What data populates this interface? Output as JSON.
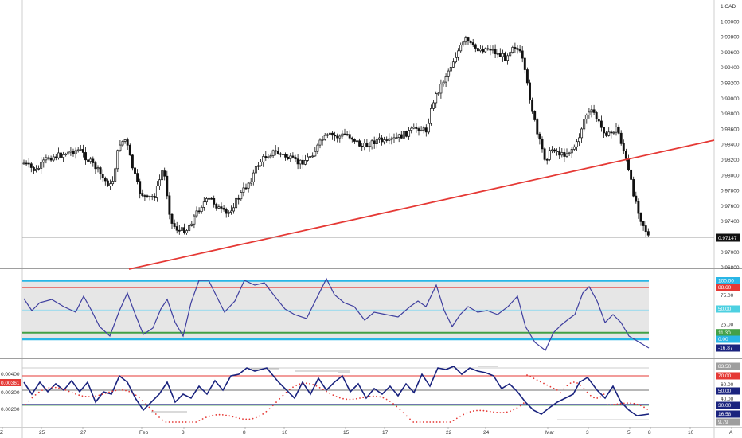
{
  "currency": "CAD",
  "colors": {
    "candle": "#111111",
    "trendline": "#e53935",
    "osc_line": "#3f3f9f",
    "band_blue": "#29b6e6",
    "band_red": "#e53935",
    "band_green": "#43a047",
    "panel_fill": "#e6e6e6",
    "dots_red": "#e53935",
    "last_price_bg": "#111111"
  },
  "price_axis": {
    "ticks": [
      "1 CAD",
      "1.00000",
      "0.99800",
      "0.99600",
      "0.99400",
      "0.99200",
      "0.99000",
      "0.98800",
      "0.98600",
      "0.98400",
      "0.98200",
      "0.98000",
      "0.97800",
      "0.97600",
      "0.97400",
      "0.97200",
      "0.97000",
      "0.96800"
    ],
    "last_price": "0.97147"
  },
  "osc1_axis": {
    "labels": [
      "75.00",
      "50.00",
      "25.00"
    ],
    "badges": [
      {
        "text": "100.00",
        "kind": "blue"
      },
      {
        "text": "88.60",
        "kind": "red"
      },
      {
        "text": "50.00",
        "kind": "cyan"
      },
      {
        "text": "11.30",
        "kind": "green"
      },
      {
        "text": "0.00",
        "kind": "blue"
      },
      {
        "text": "-16.87",
        "kind": "dark"
      }
    ]
  },
  "osc2_axis": {
    "left_labels": [
      "0.00400",
      "0.00361",
      "0.00300",
      "0.00200"
    ],
    "left_badge": "0.00361",
    "right_labels": [
      "60.00",
      "40.00"
    ],
    "badges": [
      {
        "text": "83.50",
        "kind": "grey"
      },
      {
        "text": "70.00",
        "kind": "red"
      },
      {
        "text": "50.00",
        "kind": "dark"
      },
      {
        "text": "30.00",
        "kind": "navy"
      },
      {
        "text": "16.58",
        "kind": "navy"
      },
      {
        "text": "9.79",
        "kind": "grey"
      }
    ]
  },
  "time_axis": {
    "labels": [
      "Z",
      "25",
      "27",
      "Feb",
      "3",
      "8",
      "10",
      "15",
      "17",
      "22",
      "24",
      "Mar",
      "3",
      "5",
      "8",
      "10",
      "A"
    ]
  }
}
